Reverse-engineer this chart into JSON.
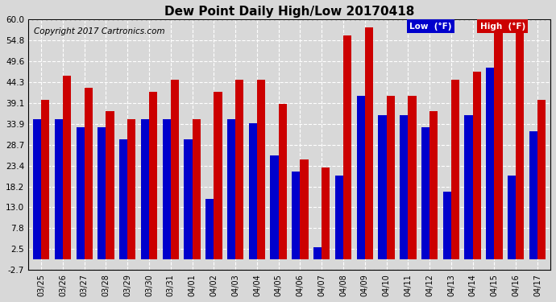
{
  "title": "Dew Point Daily High/Low 20170418",
  "copyright": "Copyright 2017 Cartronics.com",
  "legend_low": "Low  (°F)",
  "legend_high": "High  (°F)",
  "dates": [
    "03/25",
    "03/26",
    "03/27",
    "03/28",
    "03/29",
    "03/30",
    "03/31",
    "04/01",
    "04/02",
    "04/03",
    "04/04",
    "04/05",
    "04/06",
    "04/07",
    "04/08",
    "04/09",
    "04/10",
    "04/11",
    "04/12",
    "04/13",
    "04/14",
    "04/15",
    "04/16",
    "04/17"
  ],
  "low_values": [
    35,
    35,
    33,
    33,
    30,
    35,
    35,
    30,
    15,
    35,
    34,
    26,
    22,
    3,
    21,
    41,
    36,
    36,
    33,
    17,
    36,
    48,
    21,
    32
  ],
  "high_values": [
    40,
    46,
    43,
    37,
    35,
    42,
    45,
    35,
    42,
    45,
    45,
    39,
    25,
    23,
    56,
    58,
    41,
    41,
    37,
    45,
    47,
    58,
    59,
    40
  ],
  "ylim_min": -2.7,
  "ylim_max": 60.0,
  "yticks": [
    -2.7,
    2.5,
    7.8,
    13.0,
    18.2,
    23.4,
    28.7,
    33.9,
    39.1,
    44.3,
    49.6,
    54.8,
    60.0
  ],
  "bar_color_low": "#0000cc",
  "bar_color_high": "#cc0000",
  "background_color": "#d8d8d8",
  "plot_bg_color": "#d8d8d8",
  "grid_color": "white",
  "title_fontsize": 11,
  "copyright_fontsize": 7.5,
  "legend_bg_low": "#0000cc",
  "legend_bg_high": "#cc0000",
  "legend_text_color": "white"
}
